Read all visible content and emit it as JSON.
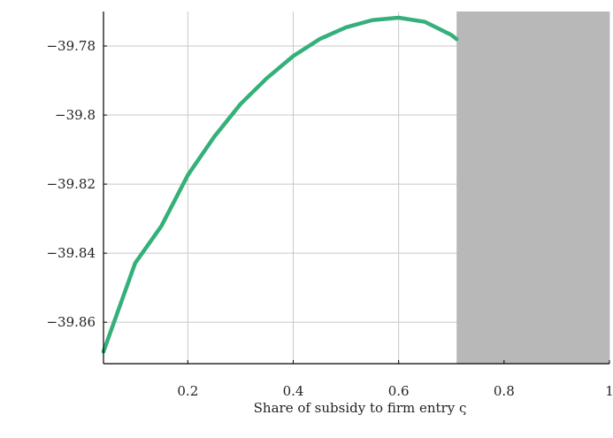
{
  "chart_data": {
    "type": "line",
    "title": "",
    "xlabel": "Share of subsidy to firm entry ς",
    "ylabel": "",
    "xlim": [
      0.04,
      1.0
    ],
    "ylim": [
      -39.872,
      -39.77
    ],
    "grid": true,
    "x_ticks": [
      0.2,
      0.4,
      0.6,
      0.8,
      1.0
    ],
    "x_tick_labels": [
      "0.2",
      "0.4",
      "0.6",
      "0.8",
      "1"
    ],
    "y_ticks": [
      -39.78,
      -39.8,
      -39.82,
      -39.84,
      -39.86
    ],
    "y_tick_labels": [
      "−39.78",
      "−39.8",
      "−39.82",
      "−39.84",
      "−39.86"
    ],
    "series": [
      {
        "color": "#35b07a",
        "x": [
          0.04,
          0.1,
          0.15,
          0.2,
          0.25,
          0.3,
          0.35,
          0.4,
          0.45,
          0.5,
          0.55,
          0.6,
          0.65,
          0.7,
          0.71
        ],
        "values": [
          -39.8685,
          -39.8429,
          -39.8321,
          -39.8174,
          -39.8063,
          -39.7968,
          -39.7893,
          -39.7829,
          -39.778,
          -39.7746,
          -39.7725,
          -39.7718,
          -39.773,
          -39.7768,
          -39.778
        ]
      }
    ],
    "shaded_region": {
      "x": [
        0.71,
        1.0
      ],
      "color": "#b8b8b8"
    }
  }
}
